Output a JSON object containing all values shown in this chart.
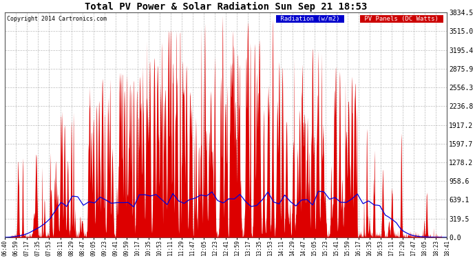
{
  "title": "Total PV Power & Solar Radiation Sun Sep 21 18:53",
  "copyright": "Copyright 2014 Cartronics.com",
  "background_color": "#ffffff",
  "plot_bg_color": "#ffffff",
  "grid_color": "#aaaaaa",
  "yticks": [
    0.0,
    319.5,
    639.1,
    958.6,
    1278.2,
    1597.7,
    1917.2,
    2236.8,
    2556.3,
    2875.9,
    3195.4,
    3515.0,
    3834.5
  ],
  "ymax": 3834.5,
  "legend_radiation_color": "#0000cc",
  "legend_pv_color": "#cc0000",
  "legend_radiation_label": "Radiation (w/m2)",
  "legend_pv_label": "PV Panels (DC Watts)",
  "radiation_color": "#0000dd",
  "pv_fill_color": "#dd0000",
  "time_labels": [
    "06:40",
    "06:59",
    "07:17",
    "07:35",
    "07:53",
    "08:11",
    "08:29",
    "08:47",
    "09:05",
    "09:23",
    "09:41",
    "09:59",
    "10:17",
    "10:35",
    "10:53",
    "11:11",
    "11:29",
    "11:47",
    "12:05",
    "12:23",
    "12:41",
    "12:59",
    "13:17",
    "13:35",
    "13:53",
    "14:11",
    "14:29",
    "14:47",
    "15:05",
    "15:23",
    "15:41",
    "15:59",
    "16:17",
    "16:35",
    "16:53",
    "17:11",
    "17:29",
    "17:47",
    "18:05",
    "18:23",
    "18:41"
  ]
}
